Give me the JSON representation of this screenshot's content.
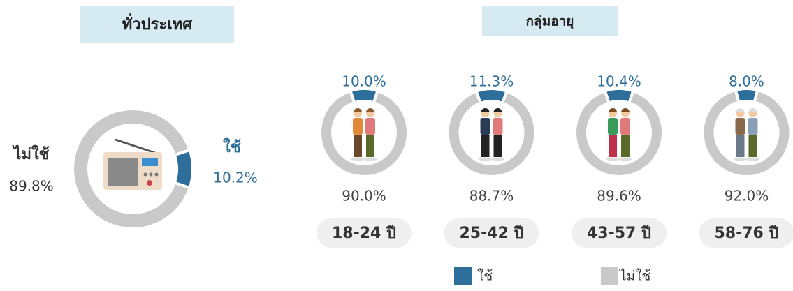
{
  "chart_data": [
    {
      "type": "pie",
      "title": "ทั่วประเทศ",
      "categories": [
        "ใช้",
        "ไม่ใช้"
      ],
      "values": [
        10.2,
        89.8
      ],
      "value_labels": [
        "10.2%",
        "89.8%"
      ],
      "colors": [
        "#2e6e9a",
        "#c9c9c9"
      ]
    },
    {
      "type": "pie",
      "title": "18-24 ปี",
      "categories": [
        "ใช้",
        "ไม่ใช้"
      ],
      "values": [
        10.0,
        90.0
      ],
      "value_labels": [
        "10.0%",
        "90.0%"
      ],
      "colors": [
        "#2e6e9a",
        "#c9c9c9"
      ]
    },
    {
      "type": "pie",
      "title": "25-42 ปี",
      "categories": [
        "ใช้",
        "ไม่ใช้"
      ],
      "values": [
        11.3,
        88.7
      ],
      "value_labels": [
        "11.3%",
        "88.7%"
      ],
      "colors": [
        "#2e6e9a",
        "#c9c9c9"
      ]
    },
    {
      "type": "pie",
      "title": "43-57 ปี",
      "categories": [
        "ใช้",
        "ไม่ใช้"
      ],
      "values": [
        10.4,
        89.6
      ],
      "value_labels": [
        "10.4%",
        "89.6%"
      ],
      "colors": [
        "#2e6e9a",
        "#c9c9c9"
      ]
    },
    {
      "type": "pie",
      "title": "58-76 ปี",
      "categories": [
        "ใช้",
        "ไม่ใช้"
      ],
      "values": [
        8.0,
        92.0
      ],
      "value_labels": [
        "8.0%",
        "92.0%"
      ],
      "colors": [
        "#2e6e9a",
        "#c9c9c9"
      ]
    }
  ],
  "age_section": {
    "title": "กลุ่มอายุ"
  }
}
